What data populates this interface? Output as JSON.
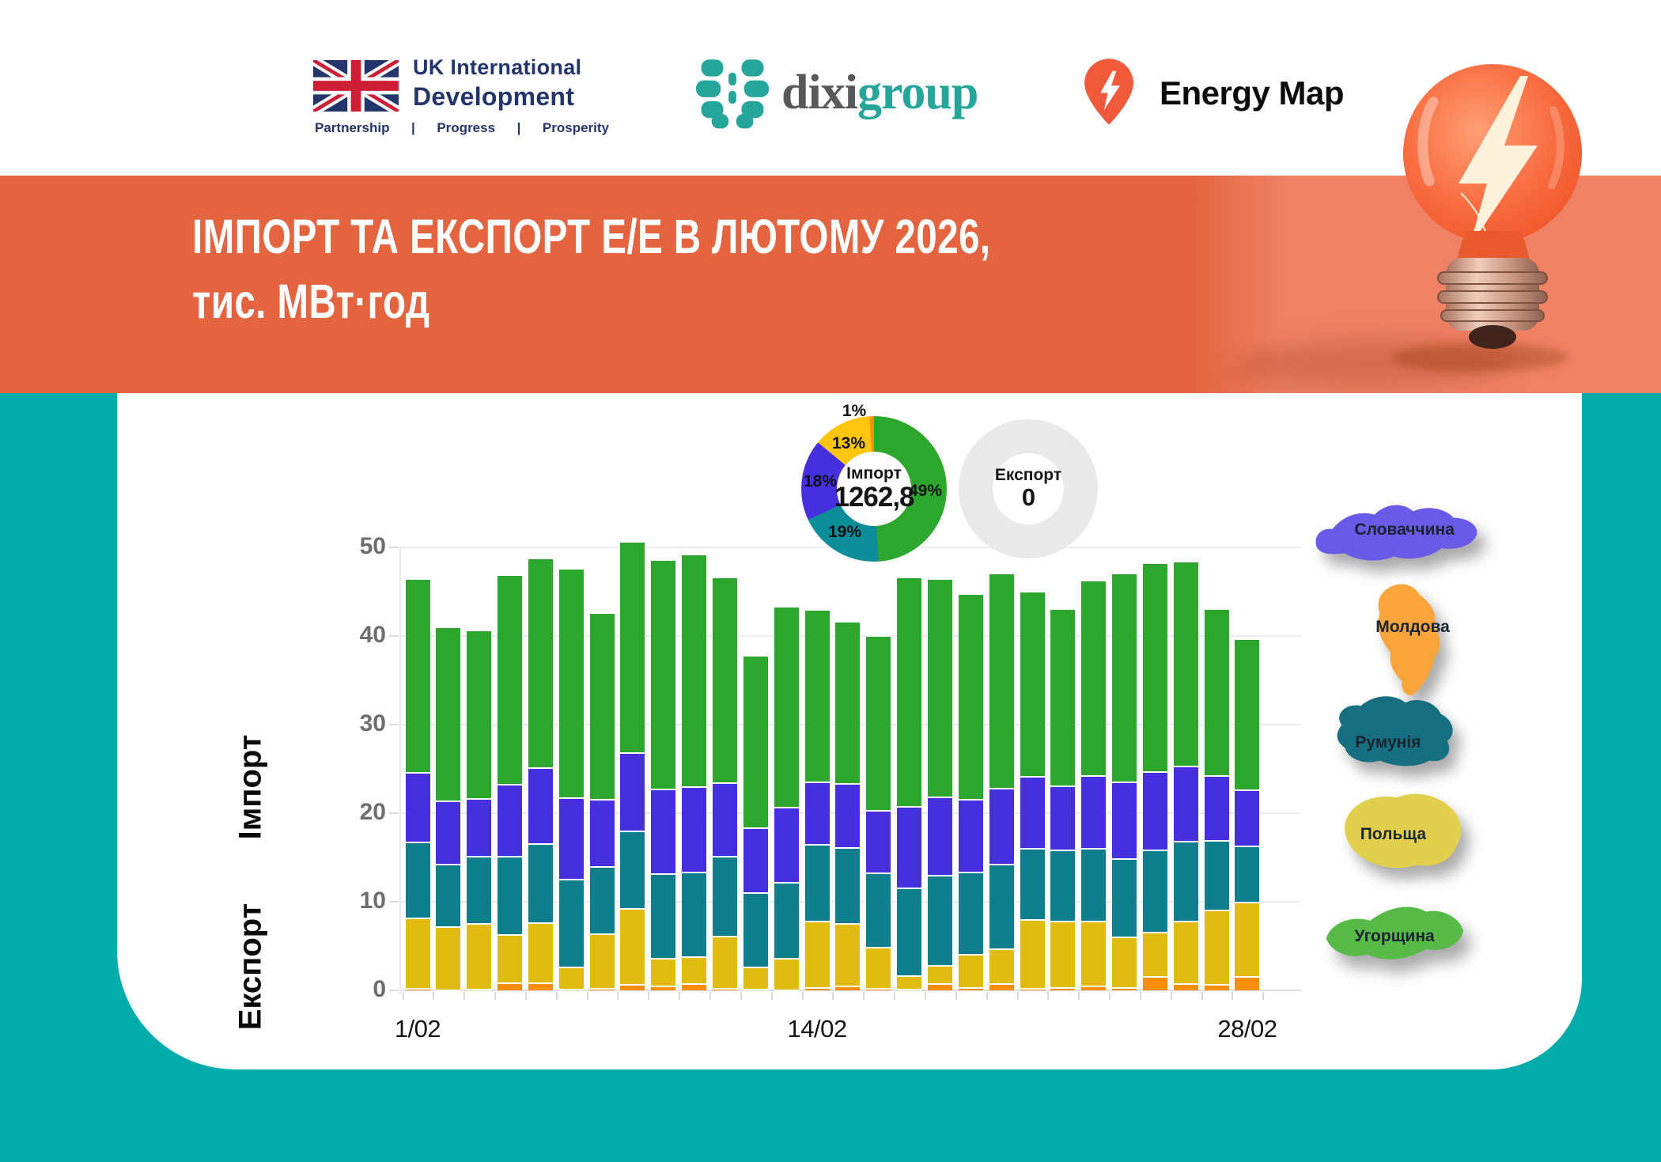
{
  "header": {
    "uk_logo": {
      "name1": "UK International",
      "name2": "Development",
      "tagline": [
        "Partnership",
        "|",
        "Progress",
        "|",
        "Prosperity"
      ],
      "navy": "#24356B",
      "red": "#CE1E36"
    },
    "dixi_logo": {
      "part1": "dixi",
      "part2": "group",
      "teal": "#26A69A",
      "gray": "#58595B"
    },
    "energy_map": {
      "label": "Energy Map",
      "pin_color": "#F05A3A"
    }
  },
  "banner": {
    "title_line1": "ІМПОРТ ТА ЕКСПОРТ Е/Е В ЛЮТОМУ 2026,",
    "title_line2": "тис. МВт·год",
    "color": "#E3643F",
    "photo_bg": "#EF8164"
  },
  "donuts": {
    "import": {
      "label": "Імпорт",
      "value": "1262,8"
    },
    "export": {
      "label": "Експорт",
      "value": "0",
      "ring_color": "#E9E9E9"
    }
  },
  "axis": {
    "y_ticks": [
      0,
      10,
      20,
      30,
      40,
      50
    ],
    "x_ticks": [
      {
        "label": "1/02",
        "day": 1
      },
      {
        "label": "14/02",
        "day": 14
      },
      {
        "label": "28/02",
        "day": 28
      }
    ],
    "side_label_top": "Імпорт",
    "side_label_bottom": "Експорт"
  },
  "countries": [
    {
      "name": "Словаччина",
      "color": "#6A5AE8"
    },
    {
      "name": "Молдова",
      "color": "#FAA43C"
    },
    {
      "name": "Румунія",
      "color": "#156F81"
    },
    {
      "name": "Польща",
      "color": "#E2CF4D"
    },
    {
      "name": "Угорщина",
      "color": "#57BA47"
    }
  ],
  "chart_data": [
    {
      "type": "pie",
      "title": "Імпорт",
      "center_value": 1262.8,
      "slices": [
        {
          "label": "Угорщина",
          "percent": 49,
          "color": "#2DA62E"
        },
        {
          "label": "Румунія",
          "percent": 19,
          "color": "#0C8E9A"
        },
        {
          "label": "Словаччина",
          "percent": 18,
          "color": "#4630DE"
        },
        {
          "label": "Польща",
          "percent": 13,
          "color": "#FFC40E"
        },
        {
          "label": "Молдова",
          "percent": 1,
          "color": "#F98E0C"
        }
      ],
      "pct_labels": [
        "49%",
        "19%",
        "18%",
        "13%",
        "1%"
      ]
    },
    {
      "type": "pie",
      "title": "Експорт",
      "center_value": 0,
      "slices": [
        {
          "label": "",
          "percent": 100,
          "color": "#E9E9E9"
        }
      ]
    },
    {
      "type": "bar",
      "stacked": true,
      "title": "Імпорт та експорт е/е по днях, тис. МВт·год",
      "ylim": [
        0,
        52
      ],
      "categories": [
        "1/02",
        "2/02",
        "3/02",
        "4/02",
        "5/02",
        "6/02",
        "7/02",
        "8/02",
        "9/02",
        "10/02",
        "11/02",
        "12/02",
        "13/02",
        "14/02",
        "15/02",
        "16/02",
        "17/02",
        "18/02",
        "19/02",
        "20/02",
        "21/02",
        "22/02",
        "23/02",
        "24/02",
        "25/02",
        "26/02",
        "27/02",
        "28/02"
      ],
      "series": [
        {
          "name": "Молдова",
          "color": "#F98E0C",
          "values": [
            0.3,
            0.1,
            0.2,
            0.9,
            0.9,
            0.2,
            0.3,
            0.7,
            0.5,
            0.8,
            0.3,
            0.2,
            0.1,
            0.4,
            0.5,
            0.3,
            0.2,
            0.8,
            0.4,
            0.8,
            0.3,
            0.4,
            0.5,
            0.4,
            1.6,
            0.8,
            0.7,
            1.6
          ]
        },
        {
          "name": "Польща",
          "color": "#E0BB10",
          "values": [
            7.9,
            7.1,
            7.4,
            5.4,
            6.8,
            2.5,
            6.1,
            8.6,
            3.2,
            3.0,
            5.9,
            2.5,
            3.6,
            7.5,
            7.1,
            4.6,
            1.5,
            2.1,
            3.7,
            3.9,
            7.7,
            7.5,
            7.4,
            5.7,
            5.0,
            7.1,
            8.4,
            8.4
          ]
        },
        {
          "name": "Румунія",
          "color": "#0E7E8C",
          "values": [
            8.6,
            7.1,
            7.6,
            8.9,
            8.9,
            9.9,
            7.6,
            8.7,
            9.5,
            9.6,
            9.0,
            8.4,
            8.5,
            8.6,
            8.6,
            8.4,
            9.9,
            10.1,
            9.3,
            9.6,
            8.1,
            8.0,
            8.2,
            8.8,
            9.3,
            9.0,
            7.9,
            6.3
          ]
        },
        {
          "name": "Словаччина",
          "color": "#4630DE",
          "values": [
            7.8,
            7.1,
            6.5,
            8.1,
            8.6,
            9.2,
            7.6,
            8.9,
            9.6,
            9.6,
            8.3,
            7.3,
            8.5,
            7.1,
            7.2,
            7.1,
            9.2,
            8.9,
            8.2,
            8.6,
            8.1,
            7.2,
            8.2,
            8.7,
            8.8,
            8.5,
            7.3,
            6.4
          ]
        },
        {
          "name": "Угорщина",
          "color": "#2DA62E",
          "values": [
            21.9,
            19.7,
            19.0,
            23.7,
            23.6,
            25.9,
            21.1,
            23.8,
            25.9,
            26.3,
            23.2,
            19.5,
            22.7,
            19.4,
            18.3,
            19.7,
            25.9,
            24.6,
            23.2,
            24.2,
            20.9,
            20.0,
            22.0,
            23.5,
            23.6,
            23.1,
            18.8,
            17.0
          ]
        }
      ]
    }
  ]
}
